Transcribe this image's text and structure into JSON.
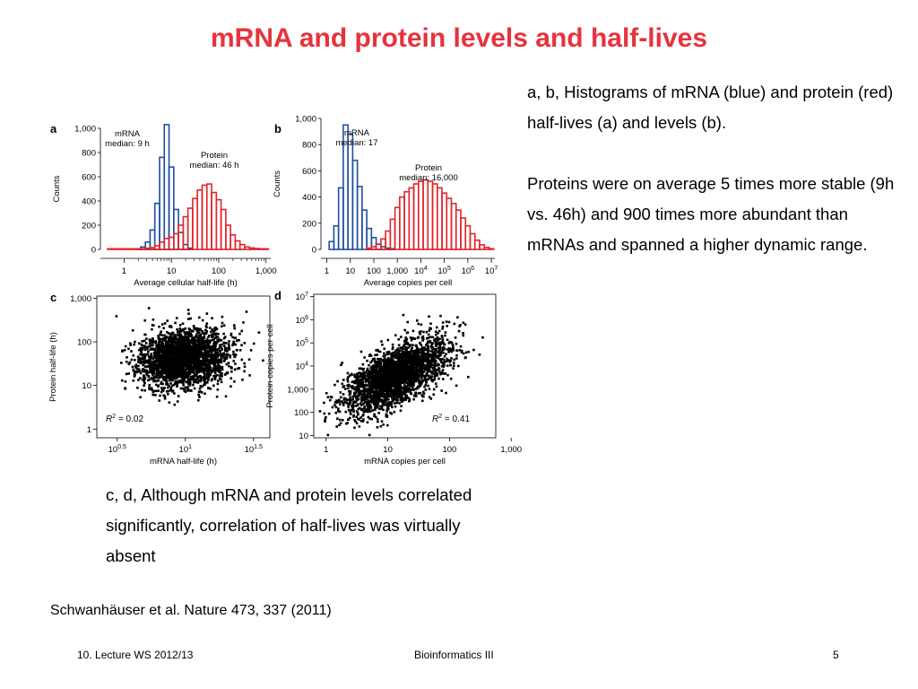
{
  "slide": {
    "title": "mRNA and protein levels and half-lives",
    "right_text": [
      "a, b, Histograms of mRNA (blue) and protein (red) half-lives (a) and levels (b).",
      "Proteins were on average 5 times more stable (9h vs. 46h) and 900 times more abundant than mRNAs and spanned a higher dynamic range."
    ],
    "bottom_text": "c, d, Although mRNA and protein levels correlated significantly, correlation of half-lives was virtually absent",
    "citation": "Schwanhäuser et al. Nature 473, 337 (2011)",
    "footer": {
      "left": "10. Lecture WS 2012/13",
      "center": "Bioinformatics III",
      "right": "5"
    }
  },
  "colors": {
    "title": "#e8323c",
    "mrna": "#1f4fa0",
    "protein": "#e0252b",
    "points": "#000000"
  },
  "chart_data": [
    {
      "panel": "a",
      "type": "bar",
      "xlabel": "Average cellular half-life (h)",
      "ylabel": "Counts",
      "x_scale": "log",
      "x_ticks": [
        "1",
        "10",
        "100",
        "1,000"
      ],
      "y_ticks": [
        "0",
        "200",
        "400",
        "600",
        "800",
        "1,000"
      ],
      "ylim": [
        0,
        1000
      ],
      "series": [
        {
          "name": "mRNA",
          "annotation": [
            "mRNA",
            "median: 9 h"
          ],
          "color": "#1f4fa0",
          "log10_centers": [
            0.3,
            0.4,
            0.5,
            0.6,
            0.7,
            0.8,
            0.9,
            1.0,
            1.1,
            1.2,
            1.3,
            1.4,
            1.5
          ],
          "values": [
            5,
            20,
            60,
            160,
            380,
            760,
            1030,
            680,
            330,
            140,
            40,
            10,
            0
          ]
        },
        {
          "name": "Protein",
          "annotation": [
            "Protein",
            "median: 46 h"
          ],
          "color": "#e0252b",
          "log10_centers": [
            -0.3,
            -0.2,
            -0.1,
            0.0,
            0.1,
            0.2,
            0.3,
            0.4,
            0.5,
            0.6,
            0.7,
            0.8,
            0.9,
            1.0,
            1.1,
            1.2,
            1.3,
            1.4,
            1.5,
            1.6,
            1.7,
            1.8,
            1.9,
            2.0,
            2.1,
            2.2,
            2.3,
            2.4,
            2.5,
            2.6,
            2.7,
            2.8,
            2.9,
            3.0
          ],
          "values": [
            5,
            5,
            5,
            5,
            5,
            5,
            5,
            5,
            10,
            15,
            30,
            60,
            90,
            100,
            130,
            200,
            270,
            340,
            420,
            490,
            530,
            540,
            470,
            410,
            330,
            200,
            120,
            70,
            40,
            20,
            12,
            8,
            5,
            5
          ]
        }
      ]
    },
    {
      "panel": "b",
      "type": "bar",
      "xlabel": "Average copies per cell",
      "ylabel": "Counts",
      "x_scale": "log",
      "x_ticks": [
        "1",
        "10",
        "100",
        "1,000",
        "10^4",
        "10^5",
        "10^6",
        "10^7"
      ],
      "y_ticks": [
        "0",
        "200",
        "400",
        "600",
        "800",
        "1,000"
      ],
      "ylim": [
        0,
        1000
      ],
      "series": [
        {
          "name": "mRNA",
          "annotation": [
            "mRNA",
            "median: 17"
          ],
          "color": "#1f4fa0",
          "log10_centers": [
            0.2,
            0.4,
            0.6,
            0.8,
            1.0,
            1.2,
            1.4,
            1.6,
            1.8,
            2.0,
            2.2,
            2.4,
            2.6,
            2.8
          ],
          "values": [
            60,
            180,
            470,
            950,
            880,
            680,
            480,
            300,
            160,
            90,
            40,
            20,
            10,
            5
          ]
        },
        {
          "name": "Protein",
          "annotation": [
            "Protein",
            "median: 16,000"
          ],
          "color": "#e0252b",
          "log10_centers": [
            1.8,
            2.0,
            2.2,
            2.4,
            2.6,
            2.8,
            3.0,
            3.2,
            3.4,
            3.6,
            3.8,
            4.0,
            4.2,
            4.4,
            4.6,
            4.8,
            5.0,
            5.2,
            5.4,
            5.6,
            5.8,
            6.0,
            6.2,
            6.4,
            6.6,
            6.8,
            7.0
          ],
          "values": [
            10,
            20,
            40,
            80,
            140,
            230,
            320,
            400,
            440,
            470,
            500,
            520,
            530,
            520,
            500,
            470,
            430,
            390,
            350,
            300,
            240,
            180,
            120,
            70,
            35,
            15,
            5
          ]
        }
      ]
    },
    {
      "panel": "c",
      "type": "scatter",
      "xlabel": "mRNA half-life (h)",
      "ylabel": "Protein half-life (h)",
      "x_scale": "log",
      "y_scale": "log",
      "x_ticks": [
        "10^0.5",
        "10^1",
        "10^1.5"
      ],
      "y_ticks": [
        "1",
        "10",
        "100",
        "1,000"
      ],
      "annotation": "R2 = 0.02",
      "r_squared": 0.02,
      "cloud": {
        "log10_x_center": 0.98,
        "log10_y_center": 1.65,
        "log10_x_sd": 0.16,
        "log10_y_sd": 0.33,
        "correlation": 0.14,
        "n_points": 2600
      }
    },
    {
      "panel": "d",
      "type": "scatter",
      "xlabel": "mRNA copies per cell",
      "ylabel": "Protein copies per cell",
      "x_scale": "log",
      "y_scale": "log",
      "x_ticks": [
        "1",
        "10",
        "100",
        "1,000"
      ],
      "y_ticks": [
        "10",
        "100",
        "1,000",
        "10^4",
        "10^5",
        "10^6",
        "10^7"
      ],
      "annotation": "R2 = 0.41",
      "r_squared": 0.41,
      "cloud": {
        "log10_x_center": 1.1,
        "log10_y_center": 3.6,
        "log10_x_sd": 0.42,
        "log10_y_sd": 0.8,
        "correlation": 0.64,
        "n_points": 2600
      }
    }
  ]
}
